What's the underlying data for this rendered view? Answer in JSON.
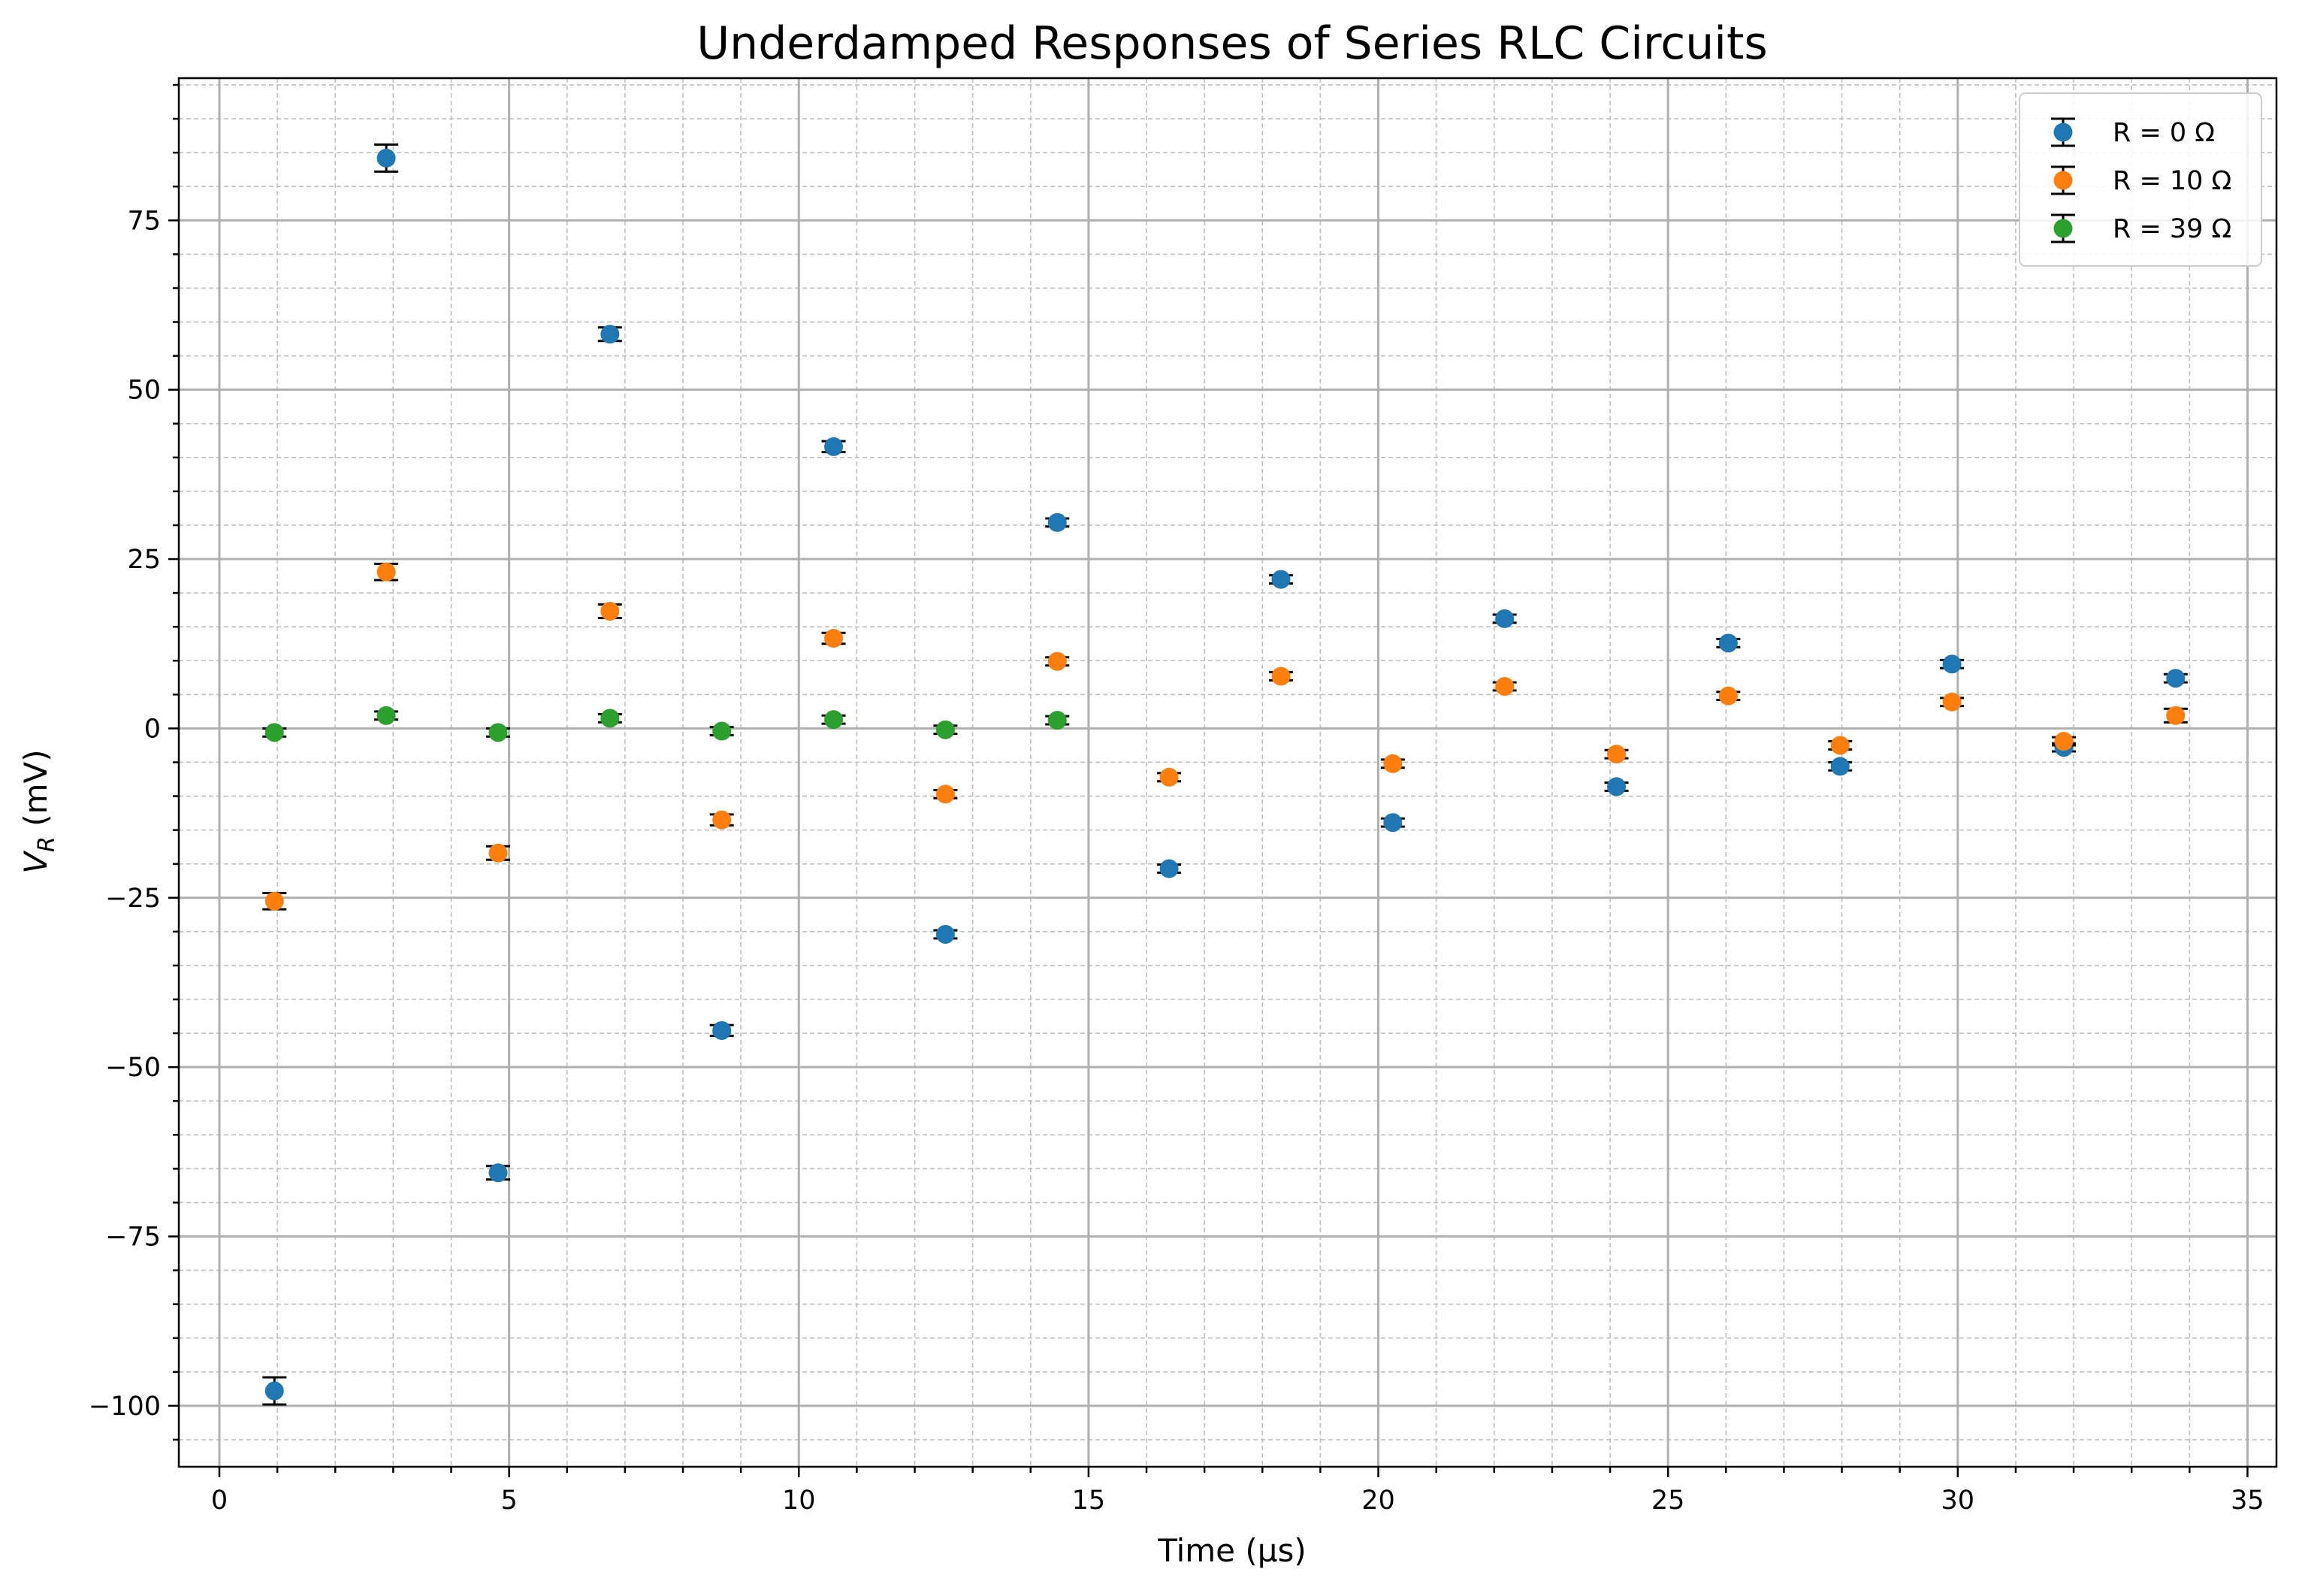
{
  "chart_data": {
    "type": "scatter",
    "title": "Underdamped Responses of Series RLC Circuits",
    "xlabel": "Time (μs)",
    "ylabel": "V_R (mV)",
    "ylabel_main": "V",
    "ylabel_sub": "R",
    "ylabel_rest": " (mV)",
    "xlim": [
      -0.7,
      35.5
    ],
    "ylim": [
      -109,
      96
    ],
    "x_ticks": [
      0,
      5,
      10,
      15,
      20,
      25,
      30,
      35
    ],
    "x_tick_labels": [
      "0",
      "5",
      "10",
      "15",
      "20",
      "25",
      "30",
      "35"
    ],
    "y_ticks": [
      -100,
      -75,
      -50,
      -25,
      0,
      25,
      50,
      75
    ],
    "y_tick_labels": [
      "−100",
      "−75",
      "−50",
      "−25",
      "0",
      "25",
      "50",
      "75"
    ],
    "grid": "major solid, minor dashed",
    "legend_position": "top-right",
    "series": [
      {
        "name": "R = 0 Ω",
        "color": "#1f77b4",
        "x": [
          0.95,
          2.88,
          4.81,
          6.74,
          8.67,
          10.6,
          12.53,
          14.46,
          16.39,
          18.32,
          20.25,
          22.18,
          24.11,
          26.04,
          27.97,
          29.9,
          31.83,
          33.76
        ],
        "y": [
          -97.8,
          84.2,
          -65.6,
          58.2,
          -44.6,
          41.6,
          -30.4,
          30.4,
          -20.7,
          22.0,
          -13.9,
          16.2,
          -8.6,
          12.6,
          -5.6,
          9.5,
          -2.8,
          7.4
        ],
        "yerr": [
          2.0,
          2.0,
          1.0,
          1.0,
          0.8,
          0.8,
          0.6,
          0.6,
          0.6,
          0.6,
          0.6,
          0.6,
          0.6,
          0.6,
          0.6,
          0.6,
          0.6,
          0.6
        ]
      },
      {
        "name": "R = 10 Ω",
        "color": "#ff7f0e",
        "x": [
          0.95,
          2.88,
          4.81,
          6.74,
          8.67,
          10.6,
          12.53,
          14.46,
          16.39,
          18.32,
          20.25,
          22.18,
          24.11,
          26.04,
          27.97,
          29.9,
          31.83,
          33.76
        ],
        "y": [
          -25.5,
          23.1,
          -18.4,
          17.3,
          -13.5,
          13.3,
          -9.7,
          9.9,
          -7.2,
          7.7,
          -5.2,
          6.2,
          -3.8,
          4.8,
          -2.5,
          3.9,
          -1.9,
          1.9
        ],
        "yerr": [
          1.2,
          1.2,
          1.0,
          1.0,
          0.8,
          0.8,
          0.6,
          0.6,
          0.6,
          0.6,
          0.6,
          0.6,
          0.6,
          0.6,
          0.6,
          0.6,
          0.6,
          1.0
        ]
      },
      {
        "name": "R = 39 Ω",
        "color": "#2ca02c",
        "x": [
          0.95,
          2.88,
          4.81,
          6.74,
          8.67,
          10.6,
          12.53,
          14.46
        ],
        "y": [
          -0.6,
          1.9,
          -0.6,
          1.5,
          -0.4,
          1.3,
          -0.2,
          1.2
        ],
        "yerr": [
          0.6,
          0.6,
          0.6,
          0.6,
          0.6,
          0.6,
          0.6,
          0.6
        ]
      }
    ]
  }
}
